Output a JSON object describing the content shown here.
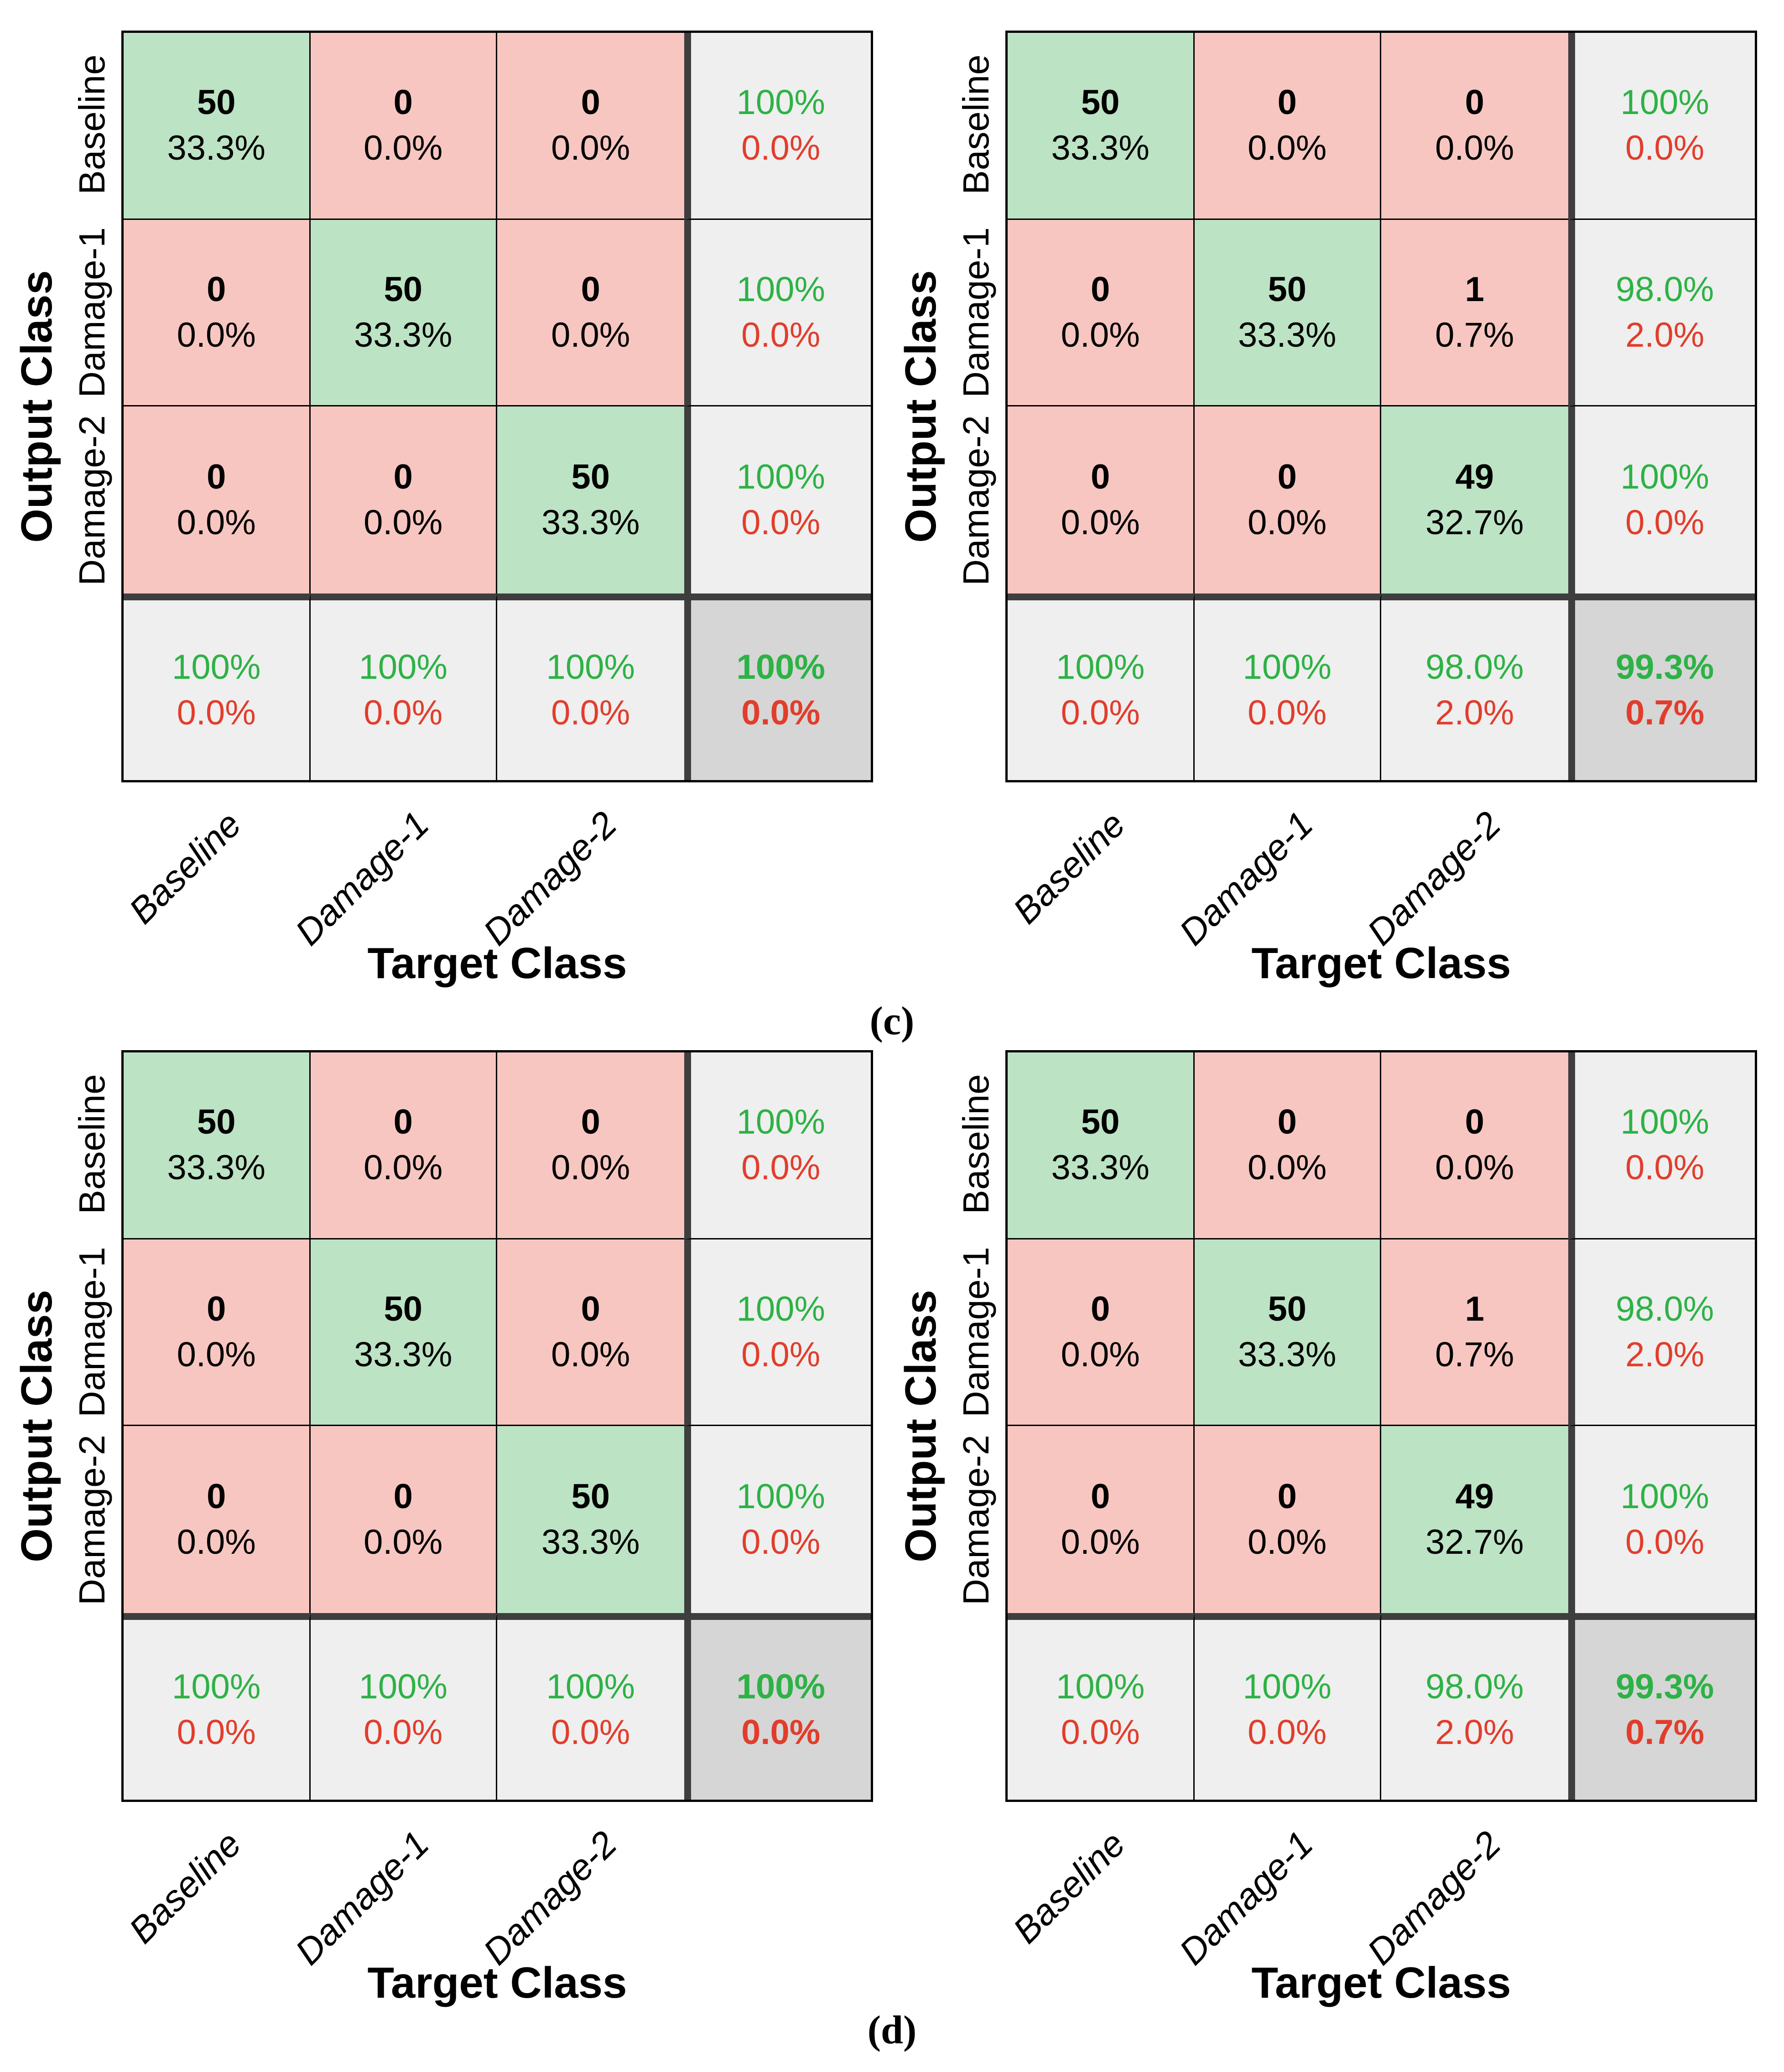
{
  "figure": {
    "panel_labels": [
      "(c)",
      "(d)"
    ],
    "x_axis_label": "Target Class",
    "y_axis_label": "Output Class",
    "class_names": [
      "Baseline",
      "Damage-1",
      "Damage-2"
    ]
  },
  "colors": {
    "fill_diagonal": "#bce3c4",
    "fill_off_diagonal": "#f7c6c0",
    "fill_summary": "#efefef",
    "fill_total": "#d6d6d6",
    "text_green": "#2db245",
    "text_red": "#e23d2c",
    "border_thick": "#3e3e3e",
    "border_thin": "#000000"
  },
  "chart_data": {
    "type": "heatmap",
    "subtype": "confusion-matrix",
    "xlabel": "Target Class",
    "ylabel": "Output Class",
    "categories": [
      "Baseline",
      "Damage-1",
      "Damage-2"
    ],
    "grid": "2x2 panels, each panel row labeled (c) or (d), each with two confusion matrices",
    "panels": [
      {
        "label": "(c)",
        "matrices": [
          {
            "position": "left",
            "counts": [
              [
                50,
                0,
                0
              ],
              [
                0,
                50,
                0
              ],
              [
                0,
                0,
                50
              ]
            ],
            "rows": [
              [
                {
                  "count": "50",
                  "pct": "33.3%"
                },
                {
                  "count": "0",
                  "pct": "0.0%"
                },
                {
                  "count": "0",
                  "pct": "0.0%"
                }
              ],
              [
                {
                  "count": "0",
                  "pct": "0.0%"
                },
                {
                  "count": "50",
                  "pct": "33.3%"
                },
                {
                  "count": "0",
                  "pct": "0.0%"
                }
              ],
              [
                {
                  "count": "0",
                  "pct": "0.0%"
                },
                {
                  "count": "0",
                  "pct": "0.0%"
                },
                {
                  "count": "50",
                  "pct": "33.3%"
                }
              ]
            ],
            "row_summary": [
              {
                "green": "100%",
                "red": "0.0%"
              },
              {
                "green": "100%",
                "red": "0.0%"
              },
              {
                "green": "100%",
                "red": "0.0%"
              }
            ],
            "col_summary": [
              {
                "green": "100%",
                "red": "0.0%"
              },
              {
                "green": "100%",
                "red": "0.0%"
              },
              {
                "green": "100%",
                "red": "0.0%"
              }
            ],
            "total": {
              "green": "100%",
              "red": "0.0%"
            }
          },
          {
            "position": "right",
            "counts": [
              [
                50,
                0,
                0
              ],
              [
                0,
                50,
                1
              ],
              [
                0,
                0,
                49
              ]
            ],
            "rows": [
              [
                {
                  "count": "50",
                  "pct": "33.3%"
                },
                {
                  "count": "0",
                  "pct": "0.0%"
                },
                {
                  "count": "0",
                  "pct": "0.0%"
                }
              ],
              [
                {
                  "count": "0",
                  "pct": "0.0%"
                },
                {
                  "count": "50",
                  "pct": "33.3%"
                },
                {
                  "count": "1",
                  "pct": "0.7%"
                }
              ],
              [
                {
                  "count": "0",
                  "pct": "0.0%"
                },
                {
                  "count": "0",
                  "pct": "0.0%"
                },
                {
                  "count": "49",
                  "pct": "32.7%"
                }
              ]
            ],
            "row_summary": [
              {
                "green": "100%",
                "red": "0.0%"
              },
              {
                "green": "98.0%",
                "red": "2.0%"
              },
              {
                "green": "100%",
                "red": "0.0%"
              }
            ],
            "col_summary": [
              {
                "green": "100%",
                "red": "0.0%"
              },
              {
                "green": "100%",
                "red": "0.0%"
              },
              {
                "green": "98.0%",
                "red": "2.0%"
              }
            ],
            "total": {
              "green": "99.3%",
              "red": "0.7%"
            }
          }
        ]
      },
      {
        "label": "(d)",
        "matrices": [
          {
            "position": "left",
            "counts": [
              [
                50,
                0,
                0
              ],
              [
                0,
                50,
                0
              ],
              [
                0,
                0,
                50
              ]
            ],
            "rows": [
              [
                {
                  "count": "50",
                  "pct": "33.3%"
                },
                {
                  "count": "0",
                  "pct": "0.0%"
                },
                {
                  "count": "0",
                  "pct": "0.0%"
                }
              ],
              [
                {
                  "count": "0",
                  "pct": "0.0%"
                },
                {
                  "count": "50",
                  "pct": "33.3%"
                },
                {
                  "count": "0",
                  "pct": "0.0%"
                }
              ],
              [
                {
                  "count": "0",
                  "pct": "0.0%"
                },
                {
                  "count": "0",
                  "pct": "0.0%"
                },
                {
                  "count": "50",
                  "pct": "33.3%"
                }
              ]
            ],
            "row_summary": [
              {
                "green": "100%",
                "red": "0.0%"
              },
              {
                "green": "100%",
                "red": "0.0%"
              },
              {
                "green": "100%",
                "red": "0.0%"
              }
            ],
            "col_summary": [
              {
                "green": "100%",
                "red": "0.0%"
              },
              {
                "green": "100%",
                "red": "0.0%"
              },
              {
                "green": "100%",
                "red": "0.0%"
              }
            ],
            "total": {
              "green": "100%",
              "red": "0.0%"
            }
          },
          {
            "position": "right",
            "counts": [
              [
                50,
                0,
                0
              ],
              [
                0,
                50,
                1
              ],
              [
                0,
                0,
                49
              ]
            ],
            "rows": [
              [
                {
                  "count": "50",
                  "pct": "33.3%"
                },
                {
                  "count": "0",
                  "pct": "0.0%"
                },
                {
                  "count": "0",
                  "pct": "0.0%"
                }
              ],
              [
                {
                  "count": "0",
                  "pct": "0.0%"
                },
                {
                  "count": "50",
                  "pct": "33.3%"
                },
                {
                  "count": "1",
                  "pct": "0.7%"
                }
              ],
              [
                {
                  "count": "0",
                  "pct": "0.0%"
                },
                {
                  "count": "0",
                  "pct": "0.0%"
                },
                {
                  "count": "49",
                  "pct": "32.7%"
                }
              ]
            ],
            "row_summary": [
              {
                "green": "100%",
                "red": "0.0%"
              },
              {
                "green": "98.0%",
                "red": "2.0%"
              },
              {
                "green": "100%",
                "red": "0.0%"
              }
            ],
            "col_summary": [
              {
                "green": "100%",
                "red": "0.0%"
              },
              {
                "green": "100%",
                "red": "0.0%"
              },
              {
                "green": "98.0%",
                "red": "2.0%"
              }
            ],
            "total": {
              "green": "99.3%",
              "red": "0.7%"
            }
          }
        ]
      }
    ]
  }
}
